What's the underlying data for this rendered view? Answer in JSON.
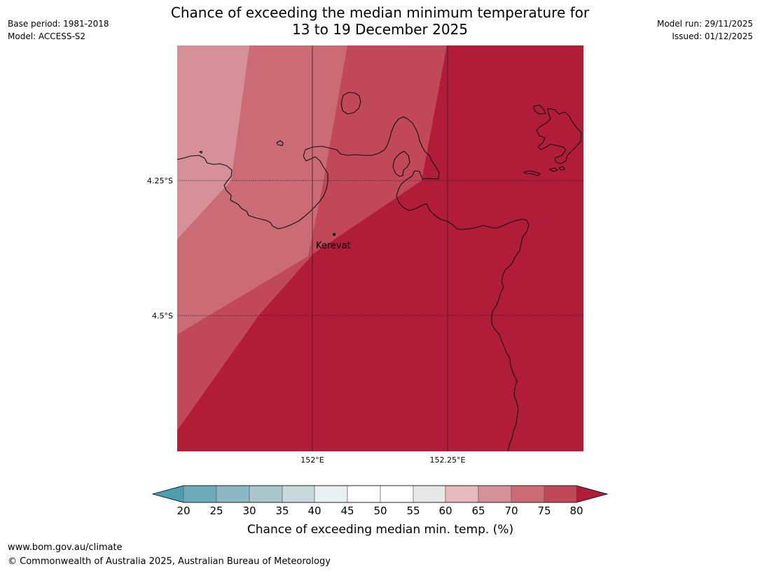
{
  "header": {
    "title_line1": "Chance of exceeding the median minimum temperature for",
    "title_line2": "13 to 19 December 2025",
    "base_period": "Base period: 1981-2018",
    "model": "Model: ACCESS-S2",
    "model_run": "Model run: 29/11/2025",
    "issued": "Issued: 01/12/2025"
  },
  "map": {
    "lat_labels": [
      "4.25°S",
      "4.5°S"
    ],
    "lon_labels": [
      "152°E",
      "152.25°E"
    ],
    "place_label": "Kerevat"
  },
  "legend": {
    "tick_labels": [
      "20",
      "25",
      "30",
      "35",
      "40",
      "45",
      "50",
      "55",
      "60",
      "65",
      "70",
      "75",
      "80"
    ],
    "title": "Chance of exceeding median min. temp. (%)",
    "colors": {
      "lt20": "#4b9fb0",
      "20-25": "#6eacbb",
      "25-30": "#8cb7c4",
      "30-35": "#a8c6cc",
      "35-40": "#c8d9dc",
      "40-45": "#e8f0f1",
      "45-50": "#ffffff",
      "50-55": "#ffffff",
      "55-60": "#e8e8e8",
      "60-65": "#e5b9bd",
      "65-70": "#d69097",
      "70-75": "#ca6b75",
      "75-80": "#c04858",
      "gt80": "#b11d39"
    }
  },
  "footer": {
    "website": "www.bom.gov.au/climate",
    "copyright": "© Commonwealth of Australia 2025, Australian Bureau of Meteorology"
  }
}
